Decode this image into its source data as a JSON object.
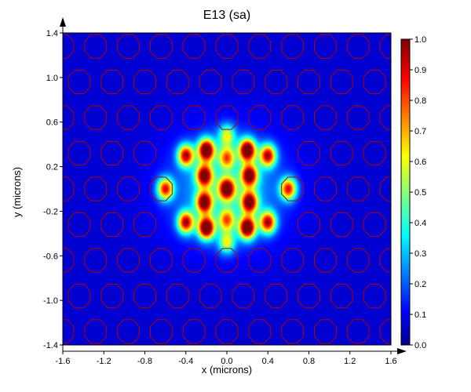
{
  "chart_data": {
    "type": "heatmap",
    "title": "E13 (sa)",
    "xlabel": "x (microns)",
    "ylabel": "y (microns)",
    "xlim": [
      -1.6,
      1.6
    ],
    "ylim": [
      -1.4,
      1.4
    ],
    "x_ticks": [
      "-1.6",
      "-1.2",
      "-0.8",
      "-0.4",
      "0.0",
      "0.4",
      "0.8",
      "1.2",
      "1.6"
    ],
    "y_ticks": [
      "1.4",
      "1.0",
      "0.6",
      "0.2",
      "-0.2",
      "-0.6",
      "-1.0",
      "-1.4"
    ],
    "colorbar": {
      "range": [
        0,
        1
      ],
      "ticks": [
        "1.0",
        "0.9",
        "0.8",
        "0.7",
        "0.6",
        "0.5",
        "0.4",
        "0.3",
        "0.2",
        "0.1",
        "0.0"
      ],
      "colormap": "jet"
    },
    "lattice": {
      "pitch": 0.32,
      "hole_radius": 0.115,
      "row_offsets": [
        0.16,
        0.0
      ],
      "outline_color": "#b20000",
      "missing_region": "central cavity, |x| <= 0.5, |y| <= 0.5"
    },
    "field_peaks": [
      {
        "x": -0.6,
        "y": 0.0,
        "value": 0.75
      },
      {
        "x": 0.6,
        "y": 0.0,
        "value": 0.75
      },
      {
        "x": -0.4,
        "y": 0.3,
        "value": 0.8
      },
      {
        "x": -0.4,
        "y": -0.3,
        "value": 0.8
      },
      {
        "x": 0.4,
        "y": 0.3,
        "value": 0.8
      },
      {
        "x": 0.4,
        "y": -0.3,
        "value": 0.8
      },
      {
        "x": -0.2,
        "y": 0.35,
        "value": 1.0
      },
      {
        "x": -0.2,
        "y": -0.35,
        "value": 1.0
      },
      {
        "x": 0.2,
        "y": 0.35,
        "value": 1.0
      },
      {
        "x": 0.2,
        "y": -0.35,
        "value": 1.0
      },
      {
        "x": -0.22,
        "y": 0.12,
        "value": 0.85
      },
      {
        "x": -0.22,
        "y": -0.12,
        "value": 0.85
      },
      {
        "x": 0.22,
        "y": 0.12,
        "value": 0.85
      },
      {
        "x": 0.22,
        "y": -0.12,
        "value": 0.85
      },
      {
        "x": 0.0,
        "y": 0.0,
        "value": 0.85
      },
      {
        "x": 0.0,
        "y": 0.28,
        "value": 0.55
      },
      {
        "x": 0.0,
        "y": -0.28,
        "value": 0.55
      },
      {
        "x": 0.0,
        "y": 0.48,
        "value": 0.45
      },
      {
        "x": 0.0,
        "y": -0.48,
        "value": 0.45
      }
    ]
  }
}
